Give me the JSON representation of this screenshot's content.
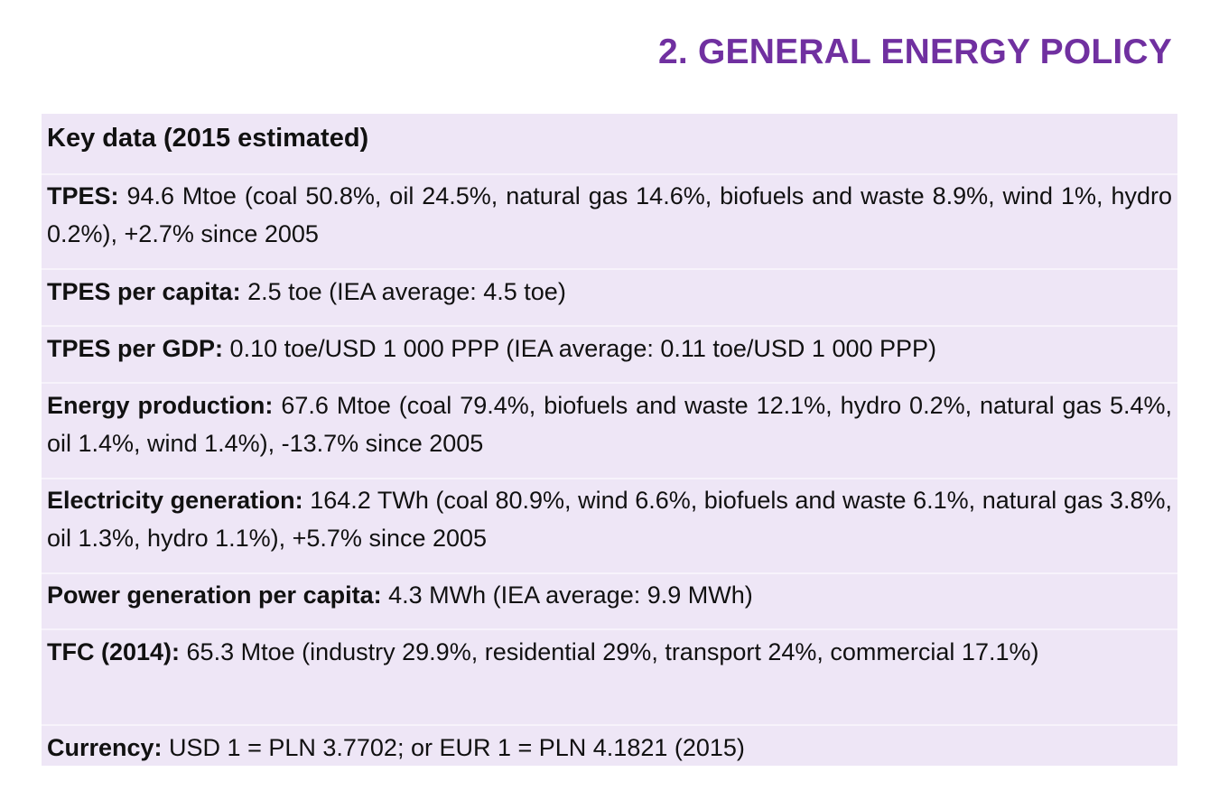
{
  "chapter_title": "2. GENERAL ENERGY POLICY",
  "key_data": {
    "heading": "Key data (2015 estimated)",
    "rows": [
      {
        "label": "TPES:",
        "text": " 94.6 Mtoe (coal 50.8%, oil 24.5%, natural gas 14.6%, biofuels and waste 8.9%, wind 1%, hydro 0.2%), +2.7% since 2005"
      },
      {
        "label": "TPES per capita:",
        "text": " 2.5 toe (IEA average: 4.5 toe)"
      },
      {
        "label": "TPES per GDP:",
        "text": " 0.10 toe/USD 1 000 PPP (IEA average: 0.11 toe/USD 1 000 PPP)"
      },
      {
        "label": "Energy production:",
        "text": " 67.6 Mtoe (coal 79.4%, biofuels and waste 12.1%, hydro 0.2%, natural gas 5.4%, oil 1.4%, wind 1.4%), -13.7% since 2005"
      },
      {
        "label": "Electricity generation:",
        "text": " 164.2 TWh (coal 80.9%, wind 6.6%, biofuels and waste 6.1%, natural gas 3.8%, oil 1.3%, hydro 1.1%), +5.7% since 2005"
      },
      {
        "label": "Power generation per capita:",
        "text": " 4.3 MWh (IEA average: 9.9 MWh)"
      },
      {
        "label": "TFC (2014):",
        "text": " 65.3 Mtoe (industry 29.9%, residential 29%, transport 24%, commercial 17.1%)"
      },
      {
        "label": "Currency:",
        "text": " USD 1 = PLN 3.7702; or EUR 1 = PLN 4.1821 (2015)"
      }
    ]
  },
  "colors": {
    "title": "#7030a0",
    "box_background": "#eee6f6"
  }
}
